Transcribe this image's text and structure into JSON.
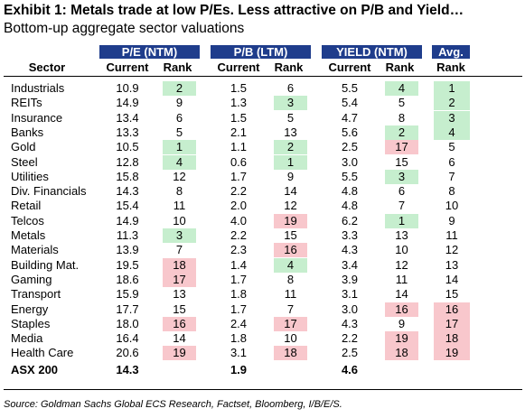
{
  "title": "Exhibit 1: Metals trade at low P/Es. Less attractive on P/B and Yield…",
  "subtitle": "Bottom-up aggregate sector valuations",
  "groups": [
    {
      "label": "P/E (NTM)"
    },
    {
      "label": "P/B (LTM)"
    },
    {
      "label": "YIELD (NTM)"
    },
    {
      "label": "Avg."
    }
  ],
  "subheaders": [
    "Sector",
    "Current",
    "Rank",
    "Current",
    "Rank",
    "Current",
    "Rank",
    "Rank"
  ],
  "highlight_colors": {
    "green": "#c6eece",
    "red": "#f8c7cc",
    "header": "#1f3d8c"
  },
  "rows": [
    {
      "sector": "Industrials",
      "pe": "10.9",
      "pe_rank": "2",
      "pe_hl": "green",
      "pb": "1.5",
      "pb_rank": "6",
      "pb_hl": "",
      "yld": "5.5",
      "yld_rank": "4",
      "yld_hl": "green",
      "avg": "1",
      "avg_hl": "green"
    },
    {
      "sector": "REITs",
      "pe": "14.9",
      "pe_rank": "9",
      "pe_hl": "",
      "pb": "1.3",
      "pb_rank": "3",
      "pb_hl": "green",
      "yld": "5.4",
      "yld_rank": "5",
      "yld_hl": "",
      "avg": "2",
      "avg_hl": "green"
    },
    {
      "sector": "Insurance",
      "pe": "13.4",
      "pe_rank": "6",
      "pe_hl": "",
      "pb": "1.5",
      "pb_rank": "5",
      "pb_hl": "",
      "yld": "4.7",
      "yld_rank": "8",
      "yld_hl": "",
      "avg": "3",
      "avg_hl": "green"
    },
    {
      "sector": "Banks",
      "pe": "13.3",
      "pe_rank": "5",
      "pe_hl": "",
      "pb": "2.1",
      "pb_rank": "13",
      "pb_hl": "",
      "yld": "5.6",
      "yld_rank": "2",
      "yld_hl": "green",
      "avg": "4",
      "avg_hl": "green"
    },
    {
      "sector": "Gold",
      "pe": "10.5",
      "pe_rank": "1",
      "pe_hl": "green",
      "pb": "1.1",
      "pb_rank": "2",
      "pb_hl": "green",
      "yld": "2.5",
      "yld_rank": "17",
      "yld_hl": "red",
      "avg": "5",
      "avg_hl": ""
    },
    {
      "sector": "Steel",
      "pe": "12.8",
      "pe_rank": "4",
      "pe_hl": "green",
      "pb": "0.6",
      "pb_rank": "1",
      "pb_hl": "green",
      "yld": "3.0",
      "yld_rank": "15",
      "yld_hl": "",
      "avg": "6",
      "avg_hl": ""
    },
    {
      "sector": "Utilities",
      "pe": "15.8",
      "pe_rank": "12",
      "pe_hl": "",
      "pb": "1.7",
      "pb_rank": "9",
      "pb_hl": "",
      "yld": "5.5",
      "yld_rank": "3",
      "yld_hl": "green",
      "avg": "7",
      "avg_hl": ""
    },
    {
      "sector": "Div. Financials",
      "pe": "14.3",
      "pe_rank": "8",
      "pe_hl": "",
      "pb": "2.2",
      "pb_rank": "14",
      "pb_hl": "",
      "yld": "4.8",
      "yld_rank": "6",
      "yld_hl": "",
      "avg": "8",
      "avg_hl": ""
    },
    {
      "sector": "Retail",
      "pe": "15.4",
      "pe_rank": "11",
      "pe_hl": "",
      "pb": "2.0",
      "pb_rank": "12",
      "pb_hl": "",
      "yld": "4.8",
      "yld_rank": "7",
      "yld_hl": "",
      "avg": "10",
      "avg_hl": ""
    },
    {
      "sector": "Telcos",
      "pe": "14.9",
      "pe_rank": "10",
      "pe_hl": "",
      "pb": "4.0",
      "pb_rank": "19",
      "pb_hl": "red",
      "yld": "6.2",
      "yld_rank": "1",
      "yld_hl": "green",
      "avg": "9",
      "avg_hl": ""
    },
    {
      "sector": "Metals",
      "pe": "11.3",
      "pe_rank": "3",
      "pe_hl": "green",
      "pb": "2.2",
      "pb_rank": "15",
      "pb_hl": "",
      "yld": "3.3",
      "yld_rank": "13",
      "yld_hl": "",
      "avg": "11",
      "avg_hl": ""
    },
    {
      "sector": "Materials",
      "pe": "13.9",
      "pe_rank": "7",
      "pe_hl": "",
      "pb": "2.3",
      "pb_rank": "16",
      "pb_hl": "red",
      "yld": "4.3",
      "yld_rank": "10",
      "yld_hl": "",
      "avg": "12",
      "avg_hl": ""
    },
    {
      "sector": "Building Mat.",
      "pe": "19.5",
      "pe_rank": "18",
      "pe_hl": "red",
      "pb": "1.4",
      "pb_rank": "4",
      "pb_hl": "green",
      "yld": "3.4",
      "yld_rank": "12",
      "yld_hl": "",
      "avg": "13",
      "avg_hl": ""
    },
    {
      "sector": "Gaming",
      "pe": "18.6",
      "pe_rank": "17",
      "pe_hl": "red",
      "pb": "1.7",
      "pb_rank": "8",
      "pb_hl": "",
      "yld": "3.9",
      "yld_rank": "11",
      "yld_hl": "",
      "avg": "14",
      "avg_hl": ""
    },
    {
      "sector": "Transport",
      "pe": "15.9",
      "pe_rank": "13",
      "pe_hl": "",
      "pb": "1.8",
      "pb_rank": "11",
      "pb_hl": "",
      "yld": "3.1",
      "yld_rank": "14",
      "yld_hl": "",
      "avg": "15",
      "avg_hl": ""
    },
    {
      "sector": "Energy",
      "pe": "17.7",
      "pe_rank": "15",
      "pe_hl": "",
      "pb": "1.7",
      "pb_rank": "7",
      "pb_hl": "",
      "yld": "3.0",
      "yld_rank": "16",
      "yld_hl": "red",
      "avg": "16",
      "avg_hl": "red"
    },
    {
      "sector": "Staples",
      "pe": "18.0",
      "pe_rank": "16",
      "pe_hl": "red",
      "pb": "2.4",
      "pb_rank": "17",
      "pb_hl": "red",
      "yld": "4.3",
      "yld_rank": "9",
      "yld_hl": "",
      "avg": "17",
      "avg_hl": "red"
    },
    {
      "sector": "Media",
      "pe": "16.4",
      "pe_rank": "14",
      "pe_hl": "",
      "pb": "1.8",
      "pb_rank": "10",
      "pb_hl": "",
      "yld": "2.2",
      "yld_rank": "19",
      "yld_hl": "red",
      "avg": "18",
      "avg_hl": "red"
    },
    {
      "sector": "Health Care",
      "pe": "20.6",
      "pe_rank": "19",
      "pe_hl": "red",
      "pb": "3.1",
      "pb_rank": "18",
      "pb_hl": "red",
      "yld": "2.5",
      "yld_rank": "18",
      "yld_hl": "red",
      "avg": "19",
      "avg_hl": "red"
    }
  ],
  "total": {
    "sector": "ASX 200",
    "pe": "14.3",
    "pb": "1.9",
    "yld": "4.6"
  },
  "source": "Source:  Goldman Sachs Global ECS Research, Factset, Bloomberg, I/B/E/S."
}
